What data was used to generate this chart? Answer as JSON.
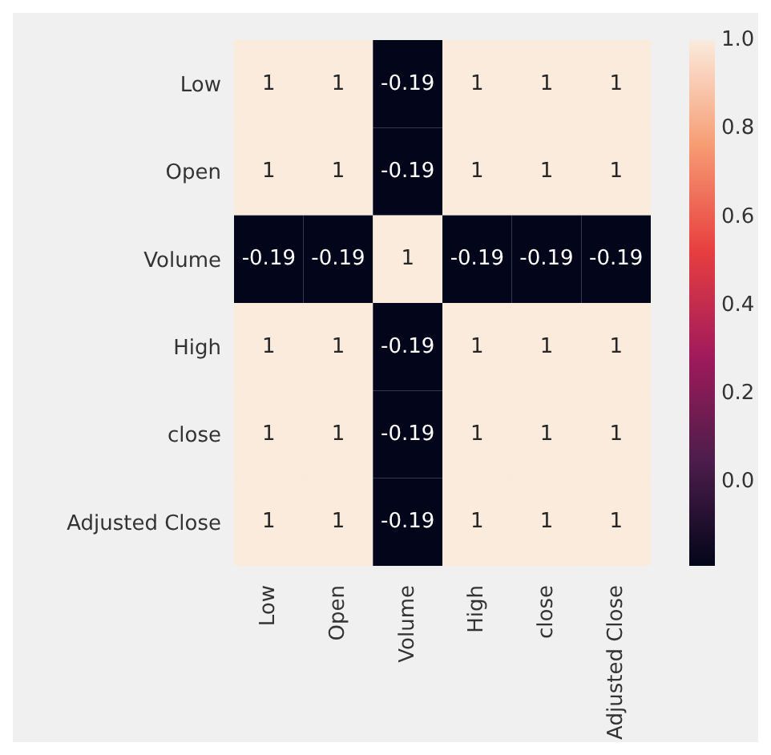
{
  "chart_data": {
    "type": "heatmap",
    "categories": [
      "Low",
      "Open",
      "Volume",
      "High",
      "close",
      "Adjusted Close"
    ],
    "y_categories": [
      "Low",
      "Open",
      "Volume",
      "High",
      "close",
      "Adjusted Close"
    ],
    "cells": [
      [
        1,
        1,
        -0.19,
        1,
        1,
        1
      ],
      [
        1,
        1,
        -0.19,
        1,
        1,
        1
      ],
      [
        -0.19,
        -0.19,
        1,
        -0.19,
        -0.19,
        -0.19
      ],
      [
        1,
        1,
        -0.19,
        1,
        1,
        1
      ],
      [
        1,
        1,
        -0.19,
        1,
        1,
        1
      ],
      [
        1,
        1,
        -0.19,
        1,
        1,
        1
      ]
    ],
    "data_labels": true,
    "clim": [
      -0.19,
      1
    ],
    "cticks": [
      {
        "value": 1,
        "label": "1.0"
      },
      0.8,
      0.6,
      0.4,
      0.2,
      {
        "value": 0,
        "label": "0.0"
      }
    ]
  }
}
